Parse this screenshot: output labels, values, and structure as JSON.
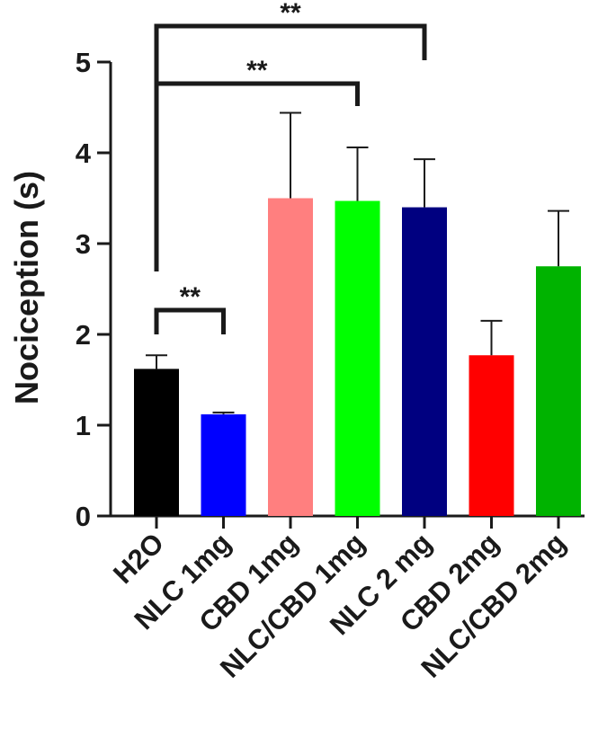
{
  "chart_data": {
    "type": "bar",
    "title": "",
    "xlabel": "",
    "ylabel": "Nociception (s)",
    "ylim": [
      0,
      5
    ],
    "yticks": [
      "0",
      "1",
      "2",
      "3",
      "4",
      "5"
    ],
    "grid": false,
    "legend": "none",
    "categories": [
      "H2O",
      "NLC 1mg",
      "CBD 1mg",
      "NLC/CBD 1mg",
      "NLC 2 mg",
      "CBD 2mg",
      "NLC/CBD 2mg"
    ],
    "values": [
      1.62,
      1.12,
      3.5,
      3.47,
      3.4,
      1.77,
      2.75
    ],
    "errors": [
      0.15,
      0.02,
      0.94,
      0.59,
      0.53,
      0.38,
      0.61
    ],
    "colors": [
      "#000000",
      "#0000ff",
      "#ff7f7f",
      "#00ff00",
      "#000080",
      "#ff0000",
      "#00b300"
    ],
    "significance": [
      {
        "from": "H2O",
        "to": "NLC 1mg",
        "label": "**"
      },
      {
        "from": "H2O",
        "to": "NLC/CBD 1mg",
        "label": "**"
      },
      {
        "from": "H2O",
        "to": "NLC 2 mg",
        "label": "**"
      }
    ]
  }
}
